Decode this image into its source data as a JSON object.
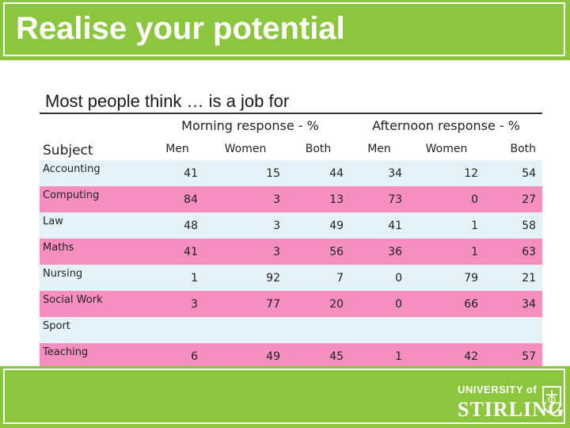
{
  "slide": {
    "title": "Realise your potential",
    "subtitle": "Most people think … is a job for"
  },
  "table": {
    "subject_header": "Subject",
    "group_headers": [
      "Morning response - %",
      "Afternoon response - %"
    ],
    "column_headers": [
      "Men",
      "Women",
      "Both",
      "Men",
      "Women",
      "Both"
    ],
    "rows": [
      {
        "subject": "Accounting",
        "values": [
          "41",
          "15",
          "44",
          "34",
          "12",
          "54"
        ]
      },
      {
        "subject": "Computing",
        "values": [
          "84",
          "3",
          "13",
          "73",
          "0",
          "27"
        ]
      },
      {
        "subject": "Law",
        "values": [
          "48",
          "3",
          "49",
          "41",
          "1",
          "58"
        ]
      },
      {
        "subject": "Maths",
        "values": [
          "41",
          "3",
          "56",
          "36",
          "1",
          "63"
        ]
      },
      {
        "subject": "Nursing",
        "values": [
          "1",
          "92",
          "7",
          "0",
          "79",
          "21"
        ]
      },
      {
        "subject": "Social Work",
        "values": [
          "3",
          "77",
          "20",
          "0",
          "66",
          "34"
        ]
      },
      {
        "subject": "Sport",
        "values": [
          "",
          "",
          "",
          "",
          "",
          ""
        ]
      },
      {
        "subject": "Teaching",
        "values": [
          "6",
          "49",
          "45",
          "1",
          "42",
          "57"
        ]
      }
    ]
  },
  "footer": {
    "logo_top": "UNIVERSITY of",
    "logo_bottom": "STIRLING"
  },
  "colors": {
    "brand_green": "#8cc63f",
    "row_blue": "#e4f2f8",
    "row_pink": "#f58fbf"
  }
}
